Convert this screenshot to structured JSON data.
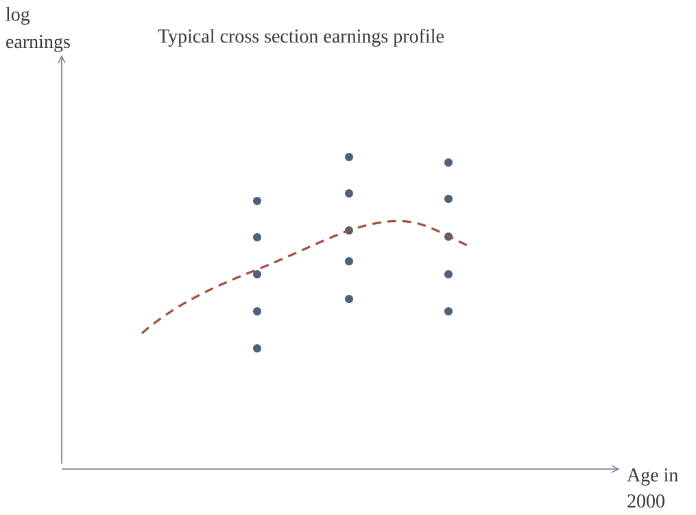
{
  "title": "Typical cross section earnings profile",
  "y_axis_label": [
    "log",
    "earnings"
  ],
  "x_axis_label": [
    "Age in",
    "2000"
  ]
}
